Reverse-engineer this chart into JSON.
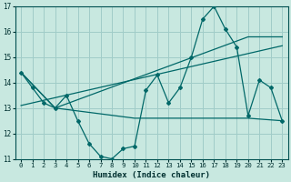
{
  "title": "",
  "xlabel": "Humidex (Indice chaleur)",
  "xlim": [
    -0.5,
    23.5
  ],
  "ylim": [
    11,
    17
  ],
  "yticks": [
    11,
    12,
    13,
    14,
    15,
    16,
    17
  ],
  "xticks": [
    0,
    1,
    2,
    3,
    4,
    5,
    6,
    7,
    8,
    9,
    10,
    11,
    12,
    13,
    14,
    15,
    16,
    17,
    18,
    19,
    20,
    21,
    22,
    23
  ],
  "bg_color": "#c8e8e0",
  "grid_color": "#a0ccc8",
  "line_color": "#006868",
  "line1_y": [
    14.4,
    13.8,
    13.2,
    13.0,
    13.5,
    12.5,
    11.6,
    11.1,
    11.0,
    11.4,
    11.5,
    13.7,
    14.3,
    13.2,
    13.8,
    15.0,
    16.5,
    17.0,
    16.1,
    15.4,
    12.7,
    14.1,
    13.8,
    12.5
  ],
  "line2_x": [
    0,
    3,
    10,
    20,
    23
  ],
  "line2_y": [
    14.4,
    13.0,
    12.6,
    12.6,
    12.5
  ],
  "line3_x": [
    0,
    3,
    20,
    23
  ],
  "line3_y": [
    14.4,
    13.0,
    15.8,
    15.8
  ],
  "line4_x": [
    0,
    23
  ],
  "line4_y": [
    13.1,
    15.45
  ]
}
